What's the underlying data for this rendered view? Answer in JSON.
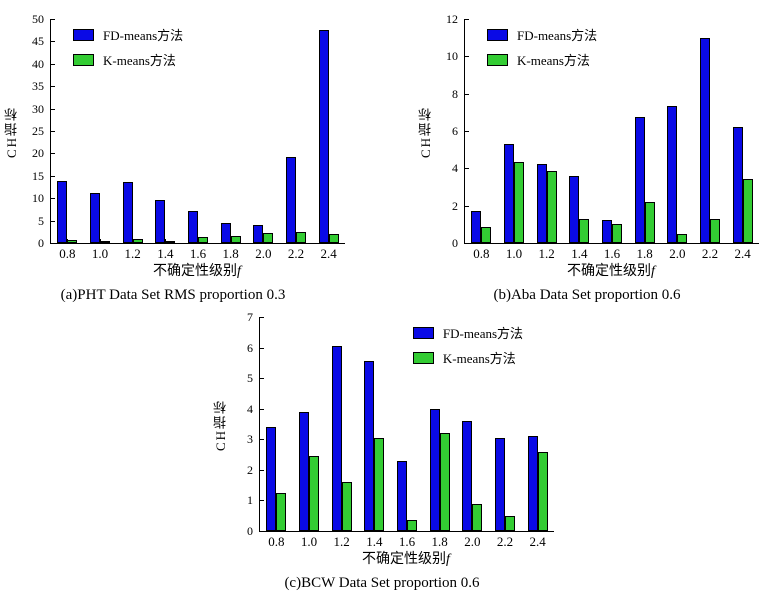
{
  "figure": {
    "fd_color": "#0a0ae6",
    "k_color": "#33cc33"
  },
  "chart_data": [
    {
      "type": "bar",
      "caption": "(a)PHT Data Set RMS proportion 0.3",
      "xlabel": "不确定性级别",
      "xlabel_italic": "f",
      "ylabel": "CH指标",
      "ylim": [
        0,
        50
      ],
      "yticks": [
        0,
        5,
        10,
        15,
        20,
        25,
        30,
        35,
        40,
        45,
        50
      ],
      "categories": [
        "0.8",
        "1.0",
        "1.2",
        "1.4",
        "1.6",
        "1.8",
        "2.0",
        "2.2",
        "2.4"
      ],
      "series": [
        {
          "name": "FD-means方法",
          "color": "#0a0ae6",
          "values": [
            13.8,
            11.2,
            13.7,
            9.6,
            7.2,
            4.4,
            4.0,
            19.2,
            47.5
          ]
        },
        {
          "name": "K-means方法",
          "color": "#33cc33",
          "values": [
            0.7,
            0.5,
            1.0,
            0.4,
            1.3,
            1.6,
            2.2,
            2.5,
            2.0
          ]
        }
      ],
      "legend_pos": "left",
      "grid": false
    },
    {
      "type": "bar",
      "caption": "(b)Aba Data Set proportion 0.6",
      "xlabel": "不确定性级别",
      "xlabel_italic": "f",
      "ylabel": "CH指标",
      "ylim": [
        0,
        12
      ],
      "yticks": [
        0,
        2,
        4,
        6,
        8,
        10,
        12
      ],
      "categories": [
        "0.8",
        "1.0",
        "1.2",
        "1.4",
        "1.6",
        "1.8",
        "2.0",
        "2.2",
        "2.4"
      ],
      "series": [
        {
          "name": "FD-means方法",
          "color": "#0a0ae6",
          "values": [
            1.7,
            5.3,
            4.25,
            3.6,
            1.25,
            6.75,
            7.35,
            11.0,
            6.2
          ]
        },
        {
          "name": "K-means方法",
          "color": "#33cc33",
          "values": [
            0.85,
            4.35,
            3.85,
            1.3,
            1.0,
            2.2,
            0.5,
            1.3,
            3.45
          ]
        }
      ],
      "legend_pos": "left",
      "grid": false
    },
    {
      "type": "bar",
      "caption": "(c)BCW Data Set proportion 0.6",
      "xlabel": "不确定性级别",
      "xlabel_italic": "f",
      "ylabel": "CH指标",
      "ylim": [
        0,
        7
      ],
      "yticks": [
        0,
        1,
        2,
        3,
        4,
        5,
        6,
        7
      ],
      "categories": [
        "0.8",
        "1.0",
        "1.2",
        "1.4",
        "1.6",
        "1.8",
        "2.0",
        "2.2",
        "2.4"
      ],
      "series": [
        {
          "name": "FD-means方法",
          "color": "#0a0ae6",
          "values": [
            3.4,
            3.9,
            6.05,
            5.55,
            2.3,
            4.0,
            3.6,
            3.05,
            3.1
          ]
        },
        {
          "name": "K-means方法",
          "color": "#33cc33",
          "values": [
            1.25,
            2.45,
            1.6,
            3.05,
            0.35,
            3.2,
            0.9,
            0.5,
            2.6
          ]
        }
      ],
      "legend_pos": "right",
      "grid": false
    }
  ]
}
